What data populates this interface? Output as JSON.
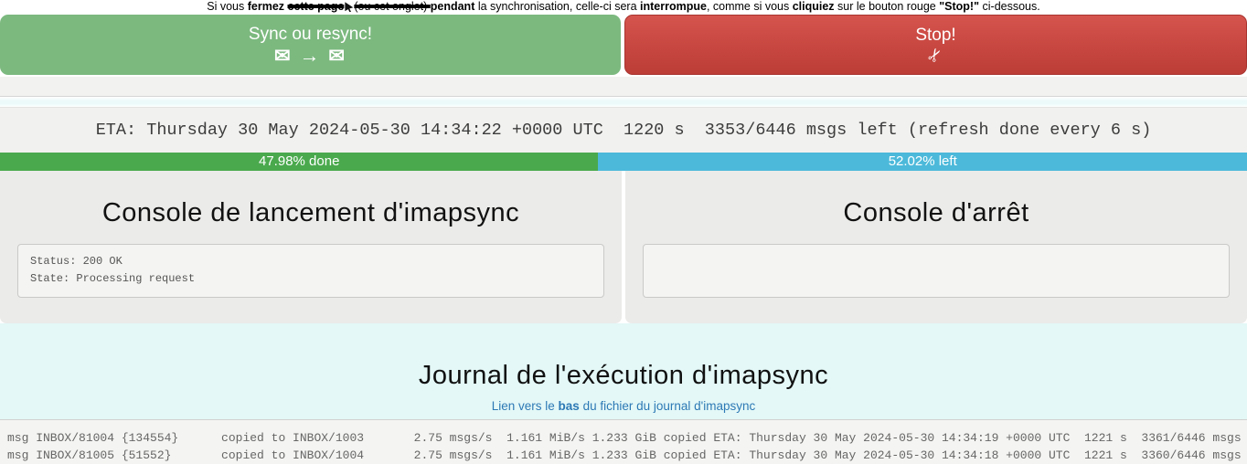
{
  "note": {
    "prefix": "Si vous ",
    "bold_fermez": "fermez ",
    "struck_1": "cette page",
    "struck_2": "(ou cet onglet) ",
    "bold_pendant": "pendant",
    "mid_1": " la synchronisation, celle-ci sera ",
    "bold_interrompue": "interrompue",
    "mid_2": ", comme si vous ",
    "bold_cliquiez": "cliquiez",
    "mid_3": " sur le bouton rouge ",
    "bold_stop": "\"Stop!\"",
    "suffix": " ci-dessous."
  },
  "buttons": {
    "sync": {
      "label": "Sync ou resync!",
      "envelope_icon": "✉",
      "arrow_icon": "→"
    },
    "stop": {
      "label": "Stop!",
      "scissors_icon": "✂"
    }
  },
  "eta": {
    "text": "ETA: Thursday 30 May 2024-05-30 14:34:22 +0000 UTC  1220 s  3353/6446 msgs left (refresh done every 6 s)"
  },
  "progress": {
    "done_pct": "47.98",
    "left_pct": "52.02",
    "done_label": "47.98% done",
    "left_label": "52.02% left",
    "done_color": "#4aa94d",
    "left_color": "#4cb9da"
  },
  "consoles": {
    "launch": {
      "title": "Console de lancement d'imapsync",
      "lines": [
        "Status: 200 OK",
        "State: Processing request"
      ]
    },
    "stop": {
      "title": "Console d'arrêt",
      "lines": []
    }
  },
  "journal": {
    "title": "Journal de l'exécution d'imapsync",
    "link_prefix": "Lien vers le ",
    "link_bold": "bas",
    "link_suffix": " du fichier du journal d'imapsync"
  },
  "log": {
    "lines": [
      "msg INBOX/81004 {134554}      copied to INBOX/1003       2.75 msgs/s  1.161 MiB/s 1.233 GiB copied ETA: Thursday 30 May 2024-05-30 14:34:19 +0000 UTC  1221 s  3361/6446 msgs",
      "msg INBOX/81005 {51552}       copied to INBOX/1004       2.75 msgs/s  1.161 MiB/s 1.233 GiB copied ETA: Thursday 30 May 2024-05-30 14:34:18 +0000 UTC  1221 s  3360/6446 msgs"
    ]
  },
  "accent_colors": {
    "sync_button_green": "#7cb97f",
    "stop_button_red": "#c7453e",
    "progress_done_green": "#4aa94d",
    "progress_left_blue": "#4cb9da",
    "journal_bg_cyan": "#e3f8f7",
    "link_blue": "#2d79b5"
  }
}
